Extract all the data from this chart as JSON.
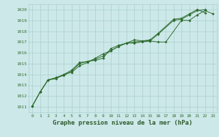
{
  "background_color": "#cce8e8",
  "grid_color": "#aacfcf",
  "line_color": "#2d6b2d",
  "marker_color": "#2d6b2d",
  "xlabel": "Graphe pression niveau de la mer (hPa)",
  "xlabel_fontsize": 6.5,
  "xlabel_color": "#2d5a2d",
  "ytick_labels": [
    1011,
    1012,
    1013,
    1014,
    1015,
    1016,
    1017,
    1018,
    1019,
    1020
  ],
  "xtick_labels": [
    0,
    1,
    2,
    3,
    4,
    5,
    6,
    7,
    8,
    9,
    10,
    11,
    12,
    13,
    14,
    15,
    16,
    17,
    18,
    19,
    20,
    21,
    22,
    23
  ],
  "ylim": [
    1010.5,
    1020.5
  ],
  "xlim": [
    -0.5,
    23.5
  ],
  "series": [
    [
      1011.1,
      1012.4,
      1013.5,
      1013.6,
      1014.0,
      1014.2,
      1014.8,
      1015.1,
      1015.5,
      1015.9,
      1016.2,
      1016.6,
      1016.9,
      1016.9,
      1017.0,
      1017.1,
      1017.0,
      1017.0,
      1019.0,
      1019.0,
      1019.5,
      1019.9,
      1019.6
    ],
    [
      1011.1,
      1012.4,
      1013.5,
      1013.7,
      1013.9,
      1014.3,
      1015.0,
      1015.2,
      1015.3,
      1015.5,
      1016.4,
      1016.7,
      1016.9,
      1017.0,
      1017.1,
      1017.1,
      1017.7,
      1019.0,
      1019.1,
      1019.5,
      1019.9,
      1020.0
    ],
    [
      1011.1,
      1012.4,
      1013.5,
      1013.7,
      1014.0,
      1014.4,
      1015.1,
      1015.2,
      1015.4,
      1015.7,
      1016.2,
      1016.6,
      1016.9,
      1017.2,
      1017.1,
      1017.2,
      1017.8,
      1019.1,
      1019.2,
      1019.6,
      1020.0,
      1019.7
    ]
  ],
  "series_x": [
    [
      0,
      1,
      2,
      3,
      4,
      5,
      6,
      7,
      8,
      9,
      10,
      11,
      12,
      13,
      14,
      15,
      16,
      17,
      19,
      20,
      21,
      22,
      23
    ],
    [
      0,
      1,
      2,
      3,
      4,
      5,
      6,
      7,
      8,
      9,
      10,
      11,
      12,
      13,
      14,
      15,
      16,
      18,
      19,
      20,
      21,
      22
    ],
    [
      0,
      1,
      2,
      3,
      4,
      5,
      6,
      7,
      8,
      9,
      10,
      11,
      12,
      13,
      14,
      15,
      16,
      18,
      19,
      20,
      21,
      22
    ]
  ]
}
